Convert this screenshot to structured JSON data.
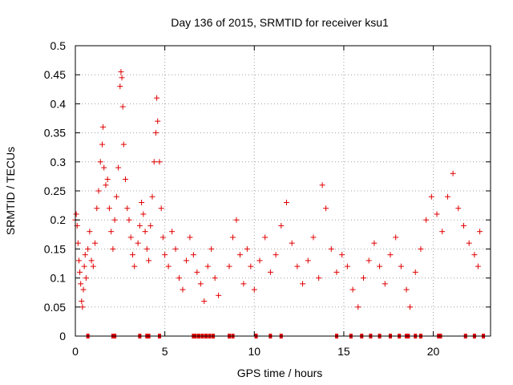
{
  "chart_data": {
    "type": "scatter",
    "title": "Day 136 of 2015, SRMTID for receiver ksu1",
    "xlabel": "GPS time / hours",
    "ylabel": "SRMTID / TECUs",
    "xlim": [
      0,
      23.2
    ],
    "ylim": [
      0,
      0.5
    ],
    "xticks": [
      0,
      5,
      10,
      15,
      20
    ],
    "xtick_labels": [
      "0",
      "5",
      "10",
      "15",
      "20"
    ],
    "yticks": [
      0,
      0.05,
      0.1,
      0.15,
      0.2,
      0.25,
      0.3,
      0.35,
      0.4,
      0.45,
      0.5
    ],
    "ytick_labels": [
      "0",
      "0.05",
      "0.1",
      "0.15",
      "0.2",
      "0.25",
      "0.3",
      "0.35",
      "0.4",
      "0.45",
      "0.5"
    ],
    "grid": true,
    "marker": "plus",
    "color": "#e00000",
    "series": [
      {
        "name": "SRMTID",
        "points": [
          [
            0.0,
            0.2
          ],
          [
            0.05,
            0.21
          ],
          [
            0.1,
            0.19
          ],
          [
            0.15,
            0.16
          ],
          [
            0.2,
            0.13
          ],
          [
            0.25,
            0.11
          ],
          [
            0.3,
            0.09
          ],
          [
            0.35,
            0.06
          ],
          [
            0.4,
            0.05
          ],
          [
            0.45,
            0.08
          ],
          [
            0.5,
            0.12
          ],
          [
            0.55,
            0.14
          ],
          [
            0.6,
            0.1
          ],
          [
            0.7,
            0.15
          ],
          [
            0.8,
            0.18
          ],
          [
            0.9,
            0.13
          ],
          [
            1.0,
            0.12
          ],
          [
            1.1,
            0.16
          ],
          [
            1.2,
            0.22
          ],
          [
            1.3,
            0.25
          ],
          [
            1.4,
            0.3
          ],
          [
            1.5,
            0.33
          ],
          [
            1.55,
            0.36
          ],
          [
            1.6,
            0.29
          ],
          [
            1.7,
            0.26
          ],
          [
            1.8,
            0.27
          ],
          [
            1.9,
            0.22
          ],
          [
            2.0,
            0.18
          ],
          [
            2.1,
            0.15
          ],
          [
            2.2,
            0.2
          ],
          [
            2.3,
            0.24
          ],
          [
            2.4,
            0.29
          ],
          [
            2.5,
            0.43
          ],
          [
            2.55,
            0.455
          ],
          [
            2.6,
            0.445
          ],
          [
            2.65,
            0.395
          ],
          [
            2.7,
            0.33
          ],
          [
            2.8,
            0.27
          ],
          [
            2.9,
            0.22
          ],
          [
            3.0,
            0.2
          ],
          [
            3.1,
            0.17
          ],
          [
            3.2,
            0.14
          ],
          [
            3.3,
            0.12
          ],
          [
            3.5,
            0.16
          ],
          [
            3.6,
            0.19
          ],
          [
            3.7,
            0.23
          ],
          [
            3.8,
            0.21
          ],
          [
            3.9,
            0.18
          ],
          [
            4.0,
            0.15
          ],
          [
            4.1,
            0.13
          ],
          [
            4.2,
            0.19
          ],
          [
            4.3,
            0.24
          ],
          [
            4.4,
            0.3
          ],
          [
            4.5,
            0.35
          ],
          [
            4.55,
            0.41
          ],
          [
            4.6,
            0.37
          ],
          [
            4.7,
            0.3
          ],
          [
            4.8,
            0.22
          ],
          [
            4.9,
            0.17
          ],
          [
            5.0,
            0.14
          ],
          [
            5.2,
            0.12
          ],
          [
            5.4,
            0.18
          ],
          [
            5.6,
            0.15
          ],
          [
            5.8,
            0.1
          ],
          [
            6.0,
            0.08
          ],
          [
            6.2,
            0.13
          ],
          [
            6.4,
            0.17
          ],
          [
            6.6,
            0.14
          ],
          [
            6.8,
            0.11
          ],
          [
            7.0,
            0.09
          ],
          [
            7.2,
            0.06
          ],
          [
            7.4,
            0.12
          ],
          [
            7.6,
            0.15
          ],
          [
            7.8,
            0.1
          ],
          [
            8.0,
            0.07
          ],
          [
            8.6,
            0.12
          ],
          [
            8.8,
            0.17
          ],
          [
            9.0,
            0.2
          ],
          [
            9.2,
            0.14
          ],
          [
            9.4,
            0.09
          ],
          [
            9.6,
            0.15
          ],
          [
            9.8,
            0.12
          ],
          [
            10.0,
            0.08
          ],
          [
            10.3,
            0.13
          ],
          [
            10.6,
            0.17
          ],
          [
            10.9,
            0.11
          ],
          [
            11.2,
            0.14
          ],
          [
            11.5,
            0.19
          ],
          [
            11.8,
            0.23
          ],
          [
            12.1,
            0.16
          ],
          [
            12.4,
            0.12
          ],
          [
            12.7,
            0.09
          ],
          [
            13.0,
            0.13
          ],
          [
            13.3,
            0.17
          ],
          [
            13.6,
            0.1
          ],
          [
            13.8,
            0.26
          ],
          [
            14.0,
            0.22
          ],
          [
            14.3,
            0.15
          ],
          [
            14.6,
            0.11
          ],
          [
            14.9,
            0.14
          ],
          [
            15.2,
            0.12
          ],
          [
            15.5,
            0.08
          ],
          [
            15.8,
            0.05
          ],
          [
            16.1,
            0.1
          ],
          [
            16.4,
            0.13
          ],
          [
            16.7,
            0.16
          ],
          [
            17.0,
            0.12
          ],
          [
            17.3,
            0.09
          ],
          [
            17.6,
            0.14
          ],
          [
            17.9,
            0.17
          ],
          [
            18.2,
            0.12
          ],
          [
            18.5,
            0.08
          ],
          [
            18.7,
            0.05
          ],
          [
            19.0,
            0.11
          ],
          [
            19.3,
            0.15
          ],
          [
            19.6,
            0.2
          ],
          [
            19.9,
            0.24
          ],
          [
            20.2,
            0.21
          ],
          [
            20.5,
            0.18
          ],
          [
            20.8,
            0.24
          ],
          [
            21.1,
            0.28
          ],
          [
            21.4,
            0.22
          ],
          [
            21.7,
            0.19
          ],
          [
            22.0,
            0.16
          ],
          [
            22.3,
            0.14
          ],
          [
            22.5,
            0.12
          ],
          [
            22.6,
            0.18
          ]
        ]
      }
    ],
    "zero_marker_hours": [
      0.7,
      2.1,
      2.2,
      3.6,
      4.0,
      4.1,
      4.7,
      6.6,
      6.7,
      6.9,
      7.1,
      7.3,
      7.5,
      7.7,
      8.6,
      8.8,
      10.1,
      10.9,
      11.5,
      14.6,
      15.4,
      16.0,
      16.5,
      17.0,
      17.6,
      18.1,
      18.5,
      18.6,
      19.0,
      19.3,
      20.3,
      20.4,
      21.8,
      22.3,
      22.8
    ]
  }
}
